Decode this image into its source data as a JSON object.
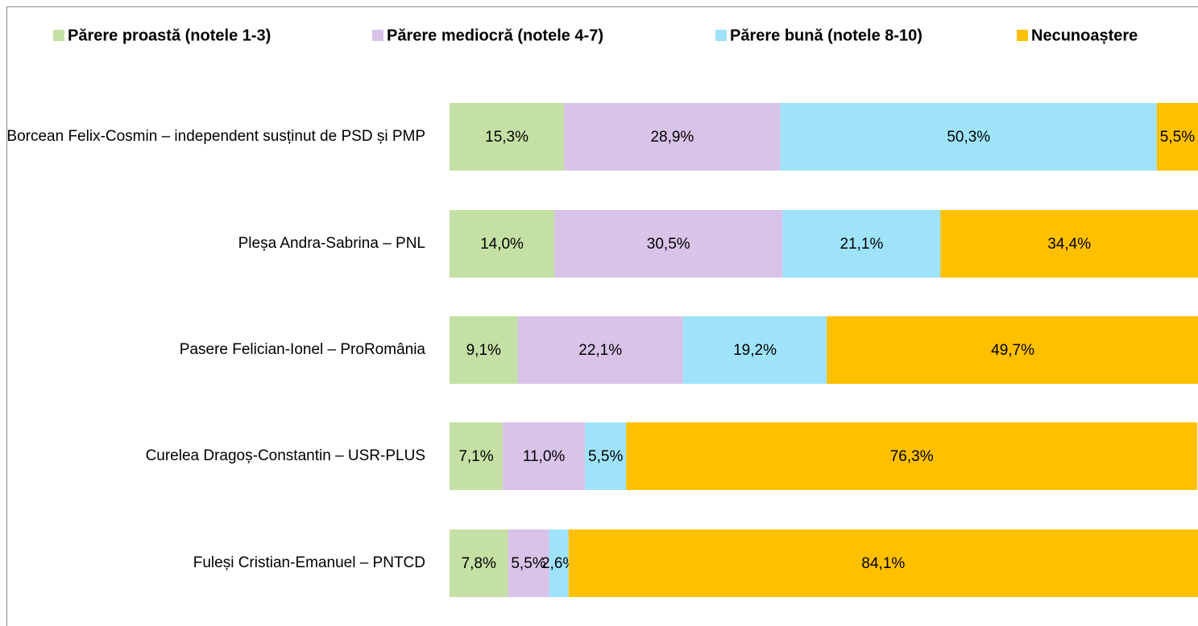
{
  "chart_data": {
    "type": "stacked-bar-horizontal",
    "categories": [
      "Borcean Felix-Cosmin – independent susținut de PSD și PMP",
      "Pleșa Andra-Sabrina – PNL",
      "Pasere Felician-Ionel – ProRomânia",
      "Curelea Dragoș-Constantin – USR-PLUS",
      "Fuleși Cristian-Emanuel – PNTCD"
    ],
    "series": [
      {
        "name": "Părere proastă (notele 1-3)",
        "color": "#c5e0a5",
        "values": [
          15.3,
          14.0,
          9.1,
          7.1,
          7.8
        ],
        "value_labels": [
          "15,3%",
          "14,0%",
          "9,1%",
          "7,1%",
          "7,8%"
        ]
      },
      {
        "name": "Părere mediocră (notele 4-7)",
        "color": "#d9c3e9",
        "values": [
          28.9,
          30.5,
          22.1,
          11.0,
          5.5
        ],
        "value_labels": [
          "28,9%",
          "30,5%",
          "22,1%",
          "11,0%",
          "5,5%"
        ]
      },
      {
        "name": "Părere bună (notele 8-10)",
        "color": "#9fe3fb",
        "values": [
          50.3,
          21.1,
          19.2,
          5.5,
          2.6
        ],
        "value_labels": [
          "50,3%",
          "21,1%",
          "19,2%",
          "5,5%",
          "2,6%"
        ]
      },
      {
        "name": "Necunoaștere",
        "color": "#ffc000",
        "values": [
          5.5,
          34.4,
          49.7,
          76.3,
          84.1
        ],
        "value_labels": [
          "5,5%",
          "34,4%",
          "49,7%",
          "76,3%",
          "84,1%"
        ]
      }
    ],
    "xlim": [
      0,
      100
    ],
    "legend": "top"
  }
}
